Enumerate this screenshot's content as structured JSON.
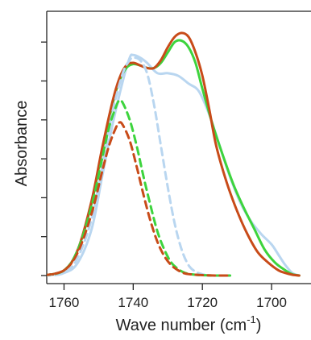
{
  "chart_data": {
    "type": "line",
    "xlabel": "Wave  number (cm",
    "xlabel_sup": "-1",
    "xlabel_close": ")",
    "ylabel": "Absorbance",
    "xlim": [
      1765,
      1690
    ],
    "ylim": [
      0,
      1.0
    ],
    "x_reversed": true,
    "x_ticks": [
      1760,
      1740,
      1720,
      1700
    ],
    "x_tick_labels": [
      "1760",
      "1740",
      "1720",
      "1700"
    ],
    "y_ticks": [
      0,
      0.15,
      0.3,
      0.45,
      0.6,
      0.75,
      0.9
    ],
    "y_tick_labels_shown": false,
    "grid": false,
    "series": [
      {
        "color": "#b9d6f0",
        "dash": "solid",
        "x": [
          1766,
          1760,
          1756,
          1752,
          1749,
          1746,
          1743,
          1741,
          1740,
          1738,
          1736,
          1733,
          1730,
          1727,
          1724,
          1721,
          1718,
          1715,
          1712,
          1709,
          1706,
          1703,
          1700,
          1698,
          1696,
          1694,
          1692
        ],
        "y": [
          0.0,
          0.01,
          0.05,
          0.18,
          0.38,
          0.58,
          0.75,
          0.84,
          0.85,
          0.84,
          0.82,
          0.78,
          0.78,
          0.77,
          0.74,
          0.71,
          0.62,
          0.5,
          0.38,
          0.28,
          0.21,
          0.16,
          0.12,
          0.08,
          0.04,
          0.01,
          0.0
        ]
      },
      {
        "color": "#3dd43d",
        "dash": "solid",
        "x": [
          1766,
          1760,
          1756,
          1752,
          1749,
          1746,
          1744,
          1742,
          1740,
          1738,
          1736,
          1734,
          1732,
          1730,
          1728,
          1726,
          1724,
          1722,
          1720,
          1717,
          1714,
          1711,
          1708,
          1705,
          1702,
          1699,
          1696,
          1694,
          1692
        ],
        "y": [
          0.0,
          0.02,
          0.1,
          0.28,
          0.48,
          0.66,
          0.75,
          0.8,
          0.815,
          0.81,
          0.8,
          0.8,
          0.82,
          0.86,
          0.9,
          0.905,
          0.88,
          0.82,
          0.72,
          0.58,
          0.46,
          0.35,
          0.26,
          0.18,
          0.1,
          0.05,
          0.02,
          0.005,
          0.0
        ]
      },
      {
        "color": "#c84b19",
        "dash": "solid",
        "x": [
          1766,
          1760,
          1756,
          1752,
          1749,
          1746,
          1744,
          1742,
          1740,
          1738,
          1736,
          1734,
          1732,
          1730,
          1728,
          1726,
          1724,
          1722,
          1720,
          1718,
          1716,
          1713,
          1710,
          1707,
          1704,
          1701,
          1698,
          1696,
          1694,
          1692
        ],
        "y": [
          0.0,
          0.02,
          0.1,
          0.29,
          0.49,
          0.67,
          0.76,
          0.81,
          0.82,
          0.81,
          0.8,
          0.8,
          0.83,
          0.88,
          0.92,
          0.935,
          0.92,
          0.86,
          0.77,
          0.64,
          0.5,
          0.36,
          0.25,
          0.16,
          0.09,
          0.05,
          0.02,
          0.01,
          0.003,
          0.0
        ]
      },
      {
        "color": "#b9d6f0",
        "dash": "dashed",
        "x": [
          1766,
          1760,
          1756,
          1752,
          1749,
          1746,
          1743,
          1741,
          1740,
          1738,
          1736,
          1734,
          1732,
          1730,
          1728,
          1726,
          1724,
          1722,
          1720,
          1718
        ],
        "y": [
          0.0,
          0.01,
          0.07,
          0.22,
          0.42,
          0.63,
          0.78,
          0.83,
          0.84,
          0.83,
          0.78,
          0.66,
          0.5,
          0.34,
          0.2,
          0.1,
          0.04,
          0.015,
          0.005,
          0.0
        ]
      },
      {
        "color": "#3dd43d",
        "dash": "dashed",
        "x": [
          1766,
          1760,
          1756,
          1752,
          1749,
          1747,
          1745,
          1744,
          1743,
          1741,
          1739,
          1737,
          1735,
          1733,
          1731,
          1729,
          1727,
          1725,
          1722,
          1719,
          1716,
          1712
        ],
        "y": [
          0.0,
          0.02,
          0.1,
          0.27,
          0.45,
          0.57,
          0.65,
          0.675,
          0.665,
          0.6,
          0.5,
          0.38,
          0.27,
          0.17,
          0.1,
          0.05,
          0.025,
          0.01,
          0.003,
          0.001,
          0.0,
          0.0
        ]
      },
      {
        "color": "#c84b19",
        "dash": "dashed",
        "x": [
          1766,
          1760,
          1756,
          1752,
          1749,
          1747,
          1745,
          1744,
          1743,
          1741,
          1739,
          1737,
          1735,
          1733,
          1731,
          1729,
          1727,
          1725,
          1722,
          1719,
          1716,
          1712
        ],
        "y": [
          0.0,
          0.02,
          0.09,
          0.24,
          0.4,
          0.5,
          0.57,
          0.59,
          0.58,
          0.52,
          0.42,
          0.31,
          0.21,
          0.13,
          0.075,
          0.04,
          0.02,
          0.008,
          0.003,
          0.001,
          0.0,
          0.0
        ]
      }
    ]
  }
}
